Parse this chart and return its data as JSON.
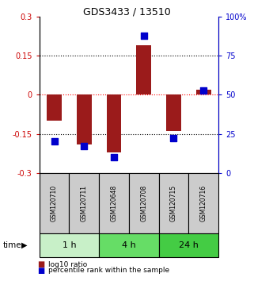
{
  "title": "GDS3433 / 13510",
  "samples": [
    "GSM120710",
    "GSM120711",
    "GSM120648",
    "GSM120708",
    "GSM120715",
    "GSM120716"
  ],
  "log10_ratio": [
    -0.1,
    -0.19,
    -0.22,
    0.19,
    -0.14,
    0.02
  ],
  "percentile_rank": [
    20,
    17,
    10,
    88,
    22,
    53
  ],
  "ylim_left": [
    -0.3,
    0.3
  ],
  "ylim_right": [
    0,
    100
  ],
  "yticks_left": [
    -0.3,
    -0.15,
    0,
    0.15,
    0.3
  ],
  "yticks_right": [
    0,
    25,
    50,
    75,
    100
  ],
  "ytick_labels_left": [
    "-0.3",
    "-0.15",
    "0",
    "0.15",
    "0.3"
  ],
  "ytick_labels_right": [
    "0",
    "25",
    "50",
    "75",
    "100%"
  ],
  "hlines_black": [
    -0.15,
    0.15
  ],
  "hline_red": 0,
  "bar_color": "#9B1B1B",
  "square_color": "#0000CC",
  "time_groups": [
    {
      "label": "1 h",
      "start": 0,
      "end": 2,
      "color": "#C8F0C8"
    },
    {
      "label": "4 h",
      "start": 2,
      "end": 4,
      "color": "#66DD66"
    },
    {
      "label": "24 h",
      "start": 4,
      "end": 6,
      "color": "#44CC44"
    }
  ],
  "legend_red_label": "log10 ratio",
  "legend_blue_label": "percentile rank within the sample",
  "time_label": "time",
  "left_label_color": "#CC0000",
  "right_label_color": "#0000CC",
  "bar_width": 0.5,
  "square_size": 30,
  "sample_box_color": "#CCCCCC",
  "fig_bg": "#FFFFFF"
}
